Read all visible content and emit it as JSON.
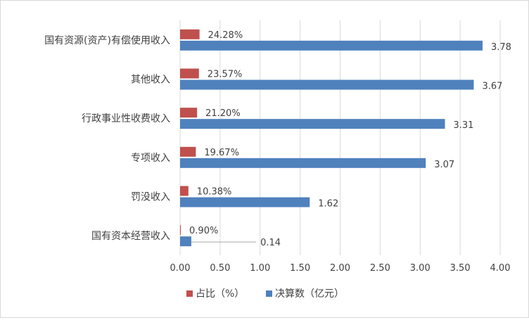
{
  "chart_data": {
    "type": "bar",
    "orientation": "horizontal",
    "categories": [
      "国有资源(资产)有偿使用收入",
      "其他收入",
      "行政事业性收费收入",
      "专项收入",
      "罚没收入",
      "国有资本经营收入"
    ],
    "series": [
      {
        "name": "占比（%）",
        "values": [
          0.2428,
          0.2357,
          0.212,
          0.1967,
          0.1038,
          0.009
        ],
        "labels": [
          "24.28%",
          "23.57%",
          "21.20%",
          "19.67%",
          "10.38%",
          "0.90%"
        ],
        "color": "#c0504d"
      },
      {
        "name": "决算数（亿元）",
        "values": [
          3.78,
          3.67,
          3.31,
          3.07,
          1.62,
          0.14
        ],
        "labels": [
          "3.78",
          "3.67",
          "3.31",
          "3.07",
          "1.62",
          "0.14"
        ],
        "color": "#4f81bd"
      }
    ],
    "xlim": [
      0,
      4
    ],
    "xticks": [
      "0.00",
      "0.50",
      "1.00",
      "1.50",
      "2.00",
      "2.50",
      "3.00",
      "3.50",
      "4.00"
    ],
    "grid": true,
    "legend_position": "bottom"
  }
}
